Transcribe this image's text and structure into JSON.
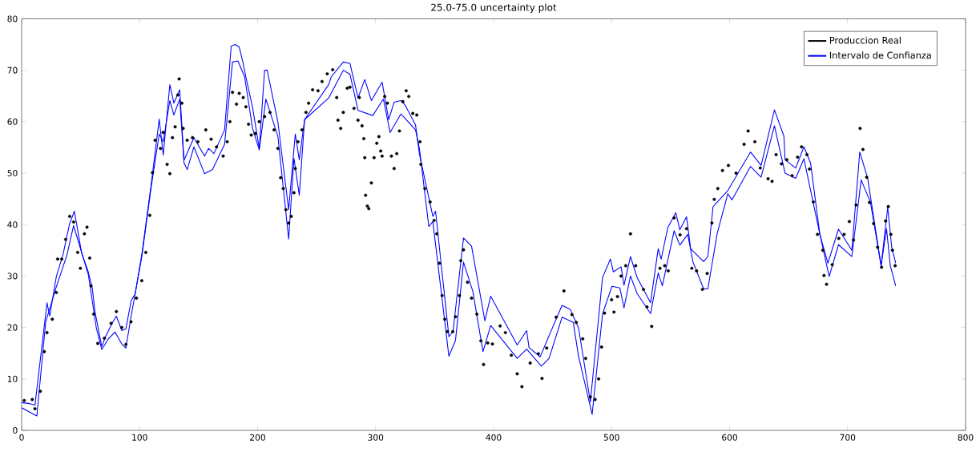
{
  "chart_data": {
    "type": "scatter",
    "title": "25.0-75.0 uncertainty plot",
    "xlim": [
      0,
      800
    ],
    "ylim": [
      0,
      80
    ],
    "xticks": [
      0,
      100,
      200,
      300,
      400,
      500,
      600,
      700,
      800
    ],
    "yticks": [
      0,
      10,
      20,
      30,
      40,
      50,
      60,
      70,
      80
    ],
    "grid": false,
    "legend": "top right",
    "series": [
      {
        "name": "Produccion Real",
        "marker": "circle",
        "color": "#000000",
        "x": [
          2.2,
          9,
          11.3,
          15.8,
          19.2,
          21.5,
          26,
          29.4,
          30.5,
          34,
          37.3,
          40.7,
          44.1,
          47.5,
          49.8,
          53.2,
          55.4,
          57.7,
          58.8,
          61.1,
          64.5,
          70.1,
          75.8,
          80.3,
          84.9,
          88.3,
          92.7,
          97.3,
          101.8,
          105.2,
          108.6,
          110.9,
          113.1,
          117.7,
          119.9,
          123.3,
          125.6,
          127.8,
          130.1,
          132.4,
          133.5,
          135.8,
          136.9,
          140.3,
          144.8,
          149.4,
          156.1,
          160.6,
          165.2,
          170.8,
          174.2,
          176.5,
          178.7,
          182.1,
          184.4,
          187.8,
          190.1,
          192.3,
          194.6,
          198,
          201.4,
          205.9,
          210.5,
          213.9,
          217.2,
          219.5,
          221.7,
          224,
          226.3,
          228.5,
          230.8,
          231.9,
          234.2,
          237.6,
          241,
          243.2,
          246.6,
          251.2,
          254.6,
          259,
          263.6,
          267,
          268.1,
          270.4,
          272.6,
          276,
          278.3,
          281.7,
          285.1,
          286.2,
          288.5,
          290,
          290.8,
          291.5,
          293,
          294.2,
          296.4,
          298.7,
          301,
          302.8,
          304.3,
          305.5,
          307.7,
          310,
          313.4,
          315.7,
          317.9,
          320.2,
          323.1,
          325.9,
          328.1,
          331.5,
          334.9,
          337.6,
          338.3,
          341.7,
          346.2,
          349.6,
          351.8,
          354.1,
          356.4,
          358.6,
          360.9,
          365.4,
          367.7,
          371.1,
          372.2,
          374.5,
          377.9,
          381.3,
          385.8,
          389.2,
          391.5,
          395,
          399,
          405.5,
          410,
          415,
          420,
          424,
          431,
          438,
          441,
          445,
          453,
          459.6,
          466.4,
          470,
          475.5,
          478,
          482,
          486,
          489,
          491.5,
          494,
          500,
          502,
          505,
          508,
          512,
          516,
          520.4,
          527,
          530,
          534,
          541,
          545,
          548,
          553,
          558,
          563.5,
          568,
          572,
          577,
          581,
          585,
          587,
          590,
          594,
          599,
          605.5,
          612.3,
          615.7,
          621.4,
          626,
          632.6,
          636,
          639.4,
          644,
          648.5,
          653,
          657.6,
          661,
          665.5,
          667.7,
          671,
          674.5,
          679,
          680,
          682.2,
          687,
          692.5,
          697,
          701.5,
          705,
          707.2,
          710.6,
          713,
          716.2,
          718.5,
          722,
          725.4,
          728.8,
          732.2,
          734.5,
          736.7,
          738,
          740.3
        ],
        "values": [
          5.8,
          6,
          4.2,
          7.6,
          15.3,
          19,
          21.6,
          26.8,
          33.3,
          33.3,
          37.1,
          41.6,
          40.5,
          34.6,
          31.5,
          38.2,
          39.5,
          33.5,
          28.1,
          22.6,
          16.9,
          17.9,
          20.8,
          23.1,
          20,
          16.7,
          21.1,
          25.7,
          29.1,
          34.6,
          41.8,
          50.1,
          56.4,
          54.8,
          57.9,
          51.7,
          49.9,
          56.9,
          59,
          65.2,
          68.3,
          63.6,
          58.7,
          56.4,
          56.9,
          56.1,
          58.4,
          56.6,
          55.1,
          53.3,
          56.1,
          60,
          65.7,
          63.4,
          65.5,
          64.7,
          62.9,
          59.5,
          57.4,
          57.7,
          60,
          61,
          61.8,
          58.4,
          54.8,
          49.1,
          47,
          42.9,
          40.3,
          41.6,
          46.2,
          50.9,
          56.1,
          58.4,
          61.8,
          63.6,
          66.2,
          66,
          67.8,
          69.3,
          70.1,
          64.7,
          60.3,
          58.7,
          61.8,
          66.5,
          66.7,
          62.6,
          60.3,
          64.7,
          59.2,
          56.7,
          53,
          45.7,
          43.6,
          43.1,
          48.1,
          53,
          55.8,
          57.1,
          54.3,
          53.3,
          64.9,
          63.6,
          53.3,
          50.9,
          53.8,
          58.2,
          63.9,
          66,
          64.9,
          61.6,
          61.3,
          56.1,
          51.7,
          47,
          44.4,
          40.8,
          38.2,
          32.5,
          26.2,
          21.6,
          19.2,
          19.2,
          22.1,
          26.2,
          33,
          35.1,
          28.8,
          25.7,
          22.6,
          17.4,
          12.8,
          17,
          16.8,
          20.3,
          19,
          14.6,
          11,
          8.5,
          13.1,
          14.9,
          10.1,
          16,
          22,
          27.1,
          22.5,
          21,
          17.8,
          14,
          6.5,
          6,
          10,
          16.2,
          22.8,
          25.4,
          23,
          26,
          30,
          32,
          38.2,
          32,
          27.4,
          24,
          20.2,
          31.5,
          32,
          31,
          41.3,
          38,
          39.2,
          31.5,
          31,
          27.4,
          30.5,
          40.3,
          44.9,
          47,
          50.5,
          51.5,
          50,
          55.6,
          58.2,
          56.1,
          51,
          48.9,
          48.4,
          53.6,
          51.8,
          52.6,
          49.5,
          53.1,
          55.1,
          53.6,
          50.8,
          44.4,
          38.1,
          35,
          30.1,
          28.4,
          32.2,
          37.3,
          38.1,
          40.6,
          37,
          43.8,
          58.7,
          54.6,
          49.2,
          44.3,
          40.2,
          35.6,
          31.7,
          40.7,
          43.5,
          38.1,
          35,
          32
        ]
      },
      {
        "name": "Intervalo de Confianza",
        "type": "line",
        "color": "#0000ff",
        "x": [
          0,
          6.8,
          11.3,
          21.5,
          23.8,
          29.4,
          35,
          40.7,
          44.7,
          50.9,
          56.5,
          59.9,
          62.2,
          67.9,
          71.3,
          76.9,
          80.3,
          84.9,
          88.3,
          92.8,
          96.2,
          101.9,
          109.8,
          116.6,
          120,
          125.6,
          129,
          134,
          137.6,
          146,
          155,
          158.4,
          163,
          172,
          177.6,
          181,
          184.4,
          187.8,
          190,
          195.7,
          201.4,
          205.9,
          208.1,
          217.2,
          226.3,
          231.9,
          235.3,
          239.8,
          260.2,
          262.4,
          272.6,
          278.3,
          285.1,
          290.8,
          296.4,
          305.5,
          311.1,
          315.7,
          321.4,
          324.8,
          333.8,
          337.2,
          348.5,
          350.8,
          362.1,
          365.6,
          374.5,
          381.3,
          392.6,
          397.5,
          420,
          428,
          430,
          439.5,
          447,
          458,
          465,
          472,
          482,
          492.3,
          499,
          501.5,
          508,
          510.5,
          516,
          521.6,
          533,
          539.5,
          542,
          547.6,
          554.4,
          557.8,
          563.5,
          567,
          578,
          581.6,
          586,
          598.5,
          617.7,
          626.7,
          638,
          646,
          647,
          656,
          663,
          668.6,
          676.5,
          683.3,
          692.3,
          703.6,
          710.3,
          717,
          728.4,
          734,
          737.4,
          740.8
        ],
        "values": [
          5.4,
          5.2,
          4.9,
          24.8,
          22.2,
          29.9,
          34.1,
          40.2,
          42.6,
          34.4,
          30.8,
          27.6,
          23,
          16.3,
          18.3,
          20.9,
          22.2,
          19.4,
          19.7,
          25.2,
          26.5,
          34.3,
          47.8,
          60.5,
          53.5,
          67.2,
          63.6,
          66.2,
          52.5,
          56.9,
          53.3,
          54.8,
          53.8,
          58.4,
          74.7,
          75,
          74.5,
          71.3,
          68.7,
          62.8,
          54.8,
          70,
          70,
          59.9,
          42.9,
          57.6,
          52.6,
          60.4,
          67.2,
          68.7,
          71.6,
          71.3,
          64.6,
          68.2,
          64.1,
          67.7,
          60.4,
          63.8,
          64.1,
          63.3,
          59.4,
          53.6,
          41.6,
          42.6,
          18.2,
          19.2,
          37.4,
          35.8,
          21.3,
          26.1,
          16.6,
          19.4,
          16.1,
          14.3,
          18.4,
          24.3,
          23.5,
          19.9,
          5.5,
          29.7,
          33.3,
          30.8,
          31.8,
          28.2,
          33.8,
          29.7,
          24.8,
          35.3,
          33.3,
          39.4,
          42.3,
          39,
          41.5,
          35.3,
          32.8,
          33.8,
          43.5,
          46.6,
          54.1,
          51.5,
          62.3,
          57.2,
          52.6,
          51,
          55.1,
          52,
          38.1,
          32.5,
          39.1,
          35,
          54.1,
          49,
          32,
          43.3,
          35.6,
          32.5
        ]
      },
      {
        "type": "line",
        "color": "#0000ff",
        "x": [
          0,
          12.9,
          20.4,
          29.4,
          38.4,
          44,
          56.5,
          63.3,
          67.9,
          73.5,
          79.2,
          84.9,
          88.3,
          92.8,
          101.9,
          109.8,
          116.6,
          120,
          125.6,
          129,
          134,
          137.6,
          140.3,
          146,
          155,
          161.8,
          172,
          178.7,
          183.3,
          189,
          195.7,
          201.4,
          207,
          217.2,
          226.3,
          230.8,
          235.3,
          239.8,
          260.2,
          272.6,
          278.3,
          285.1,
          297.6,
          306.6,
          312.3,
          321.4,
          324.8,
          333.8,
          337.2,
          345.1,
          348.5,
          362.1,
          367.7,
          374.5,
          382.4,
          391,
          397.5,
          420,
          428,
          440.5,
          447,
          458,
          467.5,
          472,
          483.5,
          492.3,
          500.3,
          507,
          510.5,
          516,
          521.6,
          533,
          539.5,
          543,
          553,
          557.8,
          564.5,
          569,
          578,
          581.6,
          589.5,
          598.5,
          602,
          617.7,
          626.7,
          638,
          647,
          656,
          663,
          676.5,
          684.4,
          692.3,
          703.6,
          711.5,
          719.4,
          728.4,
          733,
          736.2,
          740.8
        ],
        "values": [
          4.4,
          2.8,
          21.1,
          27.9,
          34.1,
          39.8,
          30.3,
          19.9,
          15.7,
          17.8,
          19.1,
          16.8,
          16,
          22.2,
          33.8,
          47.3,
          57.6,
          56.1,
          64.1,
          61.3,
          64.4,
          52,
          50.7,
          55.1,
          49.9,
          50.7,
          55.6,
          71.6,
          71.8,
          68.7,
          58.7,
          54.5,
          64.4,
          57.1,
          37.2,
          52.9,
          45.7,
          60.4,
          64.6,
          70,
          69.2,
          62.2,
          61.2,
          64.4,
          57.9,
          61.5,
          60.7,
          58.4,
          54.7,
          39.6,
          40.6,
          14.4,
          17.5,
          32.7,
          27,
          15.3,
          20.4,
          14,
          15.8,
          12.5,
          14,
          22,
          21,
          14.4,
          3.1,
          22.6,
          28,
          27.7,
          23.8,
          30,
          26.6,
          22.7,
          30.6,
          28.1,
          38.8,
          36,
          38.1,
          32.7,
          27.5,
          27.5,
          38.3,
          46,
          44.8,
          51.3,
          49.2,
          59.2,
          50,
          49,
          52.8,
          38.1,
          29.9,
          36.1,
          33.8,
          48.7,
          44.3,
          32,
          39.2,
          32,
          28.1
        ]
      }
    ]
  }
}
